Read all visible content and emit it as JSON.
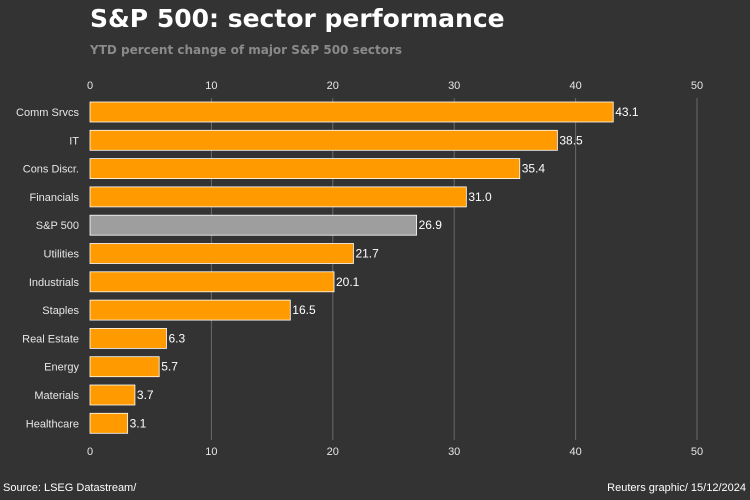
{
  "header": {
    "title": "S&P 500: sector performance",
    "subtitle": "YTD percent change of major S&P 500 sectors"
  },
  "footer": {
    "source": "Source: LSEG Datastream/",
    "credit": "Reuters graphic/ 15/12/2024"
  },
  "colors": {
    "background": "#333333",
    "bar": "#ff9b00",
    "highlight": "#9e9e9e",
    "bar_edge": "#ffffff",
    "grid": "#6a6a6a"
  },
  "chart_data": {
    "type": "bar",
    "orientation": "horizontal",
    "title": "S&P 500: sector performance",
    "subtitle": "YTD percent change of major S&P 500 sectors",
    "xlabel": "",
    "ylabel": "",
    "xlim": [
      0,
      50
    ],
    "xticks": [
      0,
      10,
      20,
      30,
      40,
      50
    ],
    "grid": true,
    "categories": [
      "Comm Srvcs",
      "IT",
      "Cons Discr.",
      "Financials",
      "S&P 500",
      "Utilities",
      "Industrials",
      "Staples",
      "Real Estate",
      "Energy",
      "Materials",
      "Healthcare"
    ],
    "values": [
      43.1,
      38.5,
      35.4,
      31.0,
      26.9,
      21.7,
      20.1,
      16.5,
      6.3,
      5.7,
      3.7,
      3.1
    ],
    "value_labels": [
      "43.1",
      "38.5",
      "35.4",
      "31.0",
      "26.9",
      "21.7",
      "20.1",
      "16.5",
      "6.3",
      "5.7",
      "3.7",
      "3.1"
    ],
    "highlight_category": "S&P 500"
  }
}
